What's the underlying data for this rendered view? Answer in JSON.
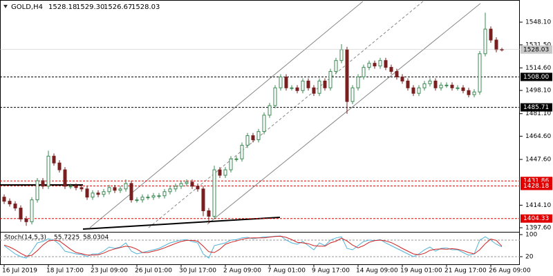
{
  "chart_data": {
    "type": "candlestick",
    "header": {
      "symbol": "GOLD,H4",
      "ohlc": [
        1528.18,
        {
          "value": 1529.3,
          "label": "1529.30"
        },
        1526.67,
        1528.03
      ]
    },
    "categories": [
      "16 Jul 2019",
      null,
      null,
      null,
      null,
      null,
      null,
      null,
      "18 Jul 17:00",
      null,
      null,
      null,
      null,
      null,
      null,
      null,
      "23 Jul 09:00",
      null,
      null,
      null,
      null,
      null,
      null,
      null,
      "26 Jul 01:00",
      null,
      null,
      null,
      null,
      null,
      null,
      null,
      "30 Jul 17:00",
      null,
      null,
      null,
      null,
      null,
      null,
      null,
      "2 Aug 09:00",
      null,
      null,
      null,
      null,
      null,
      null,
      null,
      "7 Aug 01:00",
      null,
      null,
      null,
      null,
      null,
      null,
      null,
      "9 Aug 17:00",
      null,
      null,
      null,
      null,
      null,
      null,
      null,
      "14 Aug 09:00",
      null,
      null,
      null,
      null,
      null,
      null,
      null,
      "19 Aug 01:00",
      null,
      null,
      null,
      null,
      null,
      null,
      null,
      "21 Aug 17:00",
      null,
      null,
      null,
      null,
      null,
      null,
      null,
      "26 Aug 09:00",
      null,
      null
    ],
    "open": [
      1420,
      1417,
      1415,
      1412,
      1404,
      1402,
      1418,
      1432,
      1428,
      1450,
      1445,
      1440,
      1428,
      1428,
      1427,
      1426,
      1420,
      1423,
      1422,
      1424,
      1427,
      1425,
      1426,
      1430,
      1418,
      1418,
      1420,
      1420,
      1421,
      1421,
      1424,
      1426,
      1428,
      1430,
      1431,
      1428,
      1426,
      1410,
      1406,
      1440,
      1436,
      1440,
      1448,
      1448,
      1458,
      1465,
      1462,
      1468,
      1480,
      1487,
      1500,
      1508,
      1500,
      1500,
      1498,
      1505,
      1500,
      1496,
      1505,
      1500,
      1512,
      1520,
      1528,
      1490,
      1500,
      1508,
      1515,
      1518,
      1516,
      1520,
      1515,
      1512,
      1508,
      1505,
      1500,
      1496,
      1500,
      1503,
      1505,
      1500,
      1502,
      1502,
      1500,
      1500,
      1498,
      1495,
      1497,
      1525,
      1543,
      1535,
      1528.18
    ],
    "high": [
      1422,
      1419,
      1417,
      1414,
      1406,
      1420,
      1434,
      1434,
      1454,
      1452,
      1447,
      1442,
      1430,
      1430,
      1429,
      1428,
      1425,
      1425,
      1426,
      1429,
      1429,
      1428,
      1433,
      1432,
      1420,
      1422,
      1422,
      1423,
      1423,
      1426,
      1428,
      1430,
      1432,
      1433,
      1433,
      1430,
      1428,
      1412,
      1443,
      1442,
      1442,
      1450,
      1450,
      1460,
      1467,
      1467,
      1470,
      1482,
      1489,
      1502,
      1510,
      1510,
      1502,
      1502,
      1507,
      1507,
      1502,
      1507,
      1507,
      1514,
      1522,
      1532,
      1530,
      1502,
      1510,
      1517,
      1520,
      1520,
      1522,
      1522,
      1517,
      1514,
      1510,
      1507,
      1502,
      1502,
      1505,
      1507,
      1507,
      1504,
      1504,
      1504,
      1502,
      1502,
      1500,
      1499,
      1527,
      1555,
      1545,
      1537,
      1529.3
    ],
    "low": [
      1415,
      1413,
      1410,
      1402,
      1399,
      1400,
      1416,
      1426,
      1426,
      1443,
      1438,
      1426,
      1426,
      1425,
      1424,
      1418,
      1418,
      1420,
      1420,
      1422,
      1423,
      1423,
      1424,
      1416,
      1416,
      1416,
      1418,
      1418,
      1419,
      1419,
      1422,
      1424,
      1426,
      1428,
      1426,
      1424,
      1406,
      1401,
      1404,
      1434,
      1434,
      1438,
      1446,
      1446,
      1456,
      1460,
      1460,
      1466,
      1478,
      1485,
      1498,
      1498,
      1498,
      1496,
      1496,
      1498,
      1494,
      1494,
      1498,
      1498,
      1510,
      1518,
      1481,
      1488,
      1498,
      1506,
      1513,
      1514,
      1514,
      1513,
      1510,
      1506,
      1503,
      1498,
      1494,
      1494,
      1498,
      1501,
      1498,
      1498,
      1500,
      1498,
      1498,
      1496,
      1493,
      1493,
      1495,
      1523,
      1533,
      1526,
      1526.67
    ],
    "close": [
      1417,
      1415,
      1412,
      1404,
      1402,
      1418,
      1432,
      1428,
      1450,
      1445,
      1440,
      1428,
      1428,
      1427,
      1426,
      1420,
      1423,
      1422,
      1424,
      1427,
      1425,
      1426,
      1430,
      1418,
      1418,
      1420,
      1420,
      1421,
      1421,
      1424,
      1426,
      1428,
      1430,
      1431,
      1428,
      1426,
      1410,
      1406,
      1440,
      1436,
      1440,
      1448,
      1448,
      1458,
      1465,
      1462,
      1468,
      1480,
      1487,
      1500,
      1508,
      1500,
      1500,
      1498,
      1505,
      1500,
      1496,
      1505,
      1500,
      1512,
      1520,
      1528,
      1490,
      1500,
      1508,
      1515,
      1518,
      1516,
      1520,
      1515,
      1512,
      1508,
      1505,
      1500,
      1496,
      1500,
      1503,
      1505,
      1500,
      1502,
      1502,
      1500,
      1500,
      1498,
      1495,
      1497,
      1525,
      1543,
      1535,
      1528,
      1528.03
    ],
    "up_color": "#3a8a50",
    "down_color": "#7a1f1f",
    "ylim": [
      1395.6,
      1564.3
    ],
    "yticks": [
      {
        "value": 1548.1,
        "label": "1548.10"
      },
      {
        "value": 1531.5,
        "label": "1531.50"
      },
      {
        "value": 1514.6,
        "label": "1514.60"
      },
      {
        "value": 1498.1,
        "label": "1498.10"
      },
      {
        "value": 1481.1,
        "label": "1481.10"
      },
      {
        "value": 1464.6,
        "label": "1464.60"
      },
      {
        "value": 1447.6,
        "label": "1447.60"
      },
      {
        "value": 1414.1,
        "label": "1414.10"
      },
      {
        "value": 1397.6,
        "label": "1397.60"
      }
    ],
    "levels": [
      {
        "value": 1508,
        "label": "1508.00",
        "color": "#000000"
      },
      {
        "value": 1485.71,
        "label": "1485.71",
        "color": "#000000"
      },
      {
        "value": 1431.86,
        "label": "1431.86",
        "color": "#e00000"
      },
      {
        "value": 1428.18,
        "label": "1428.18",
        "color": "#e00000"
      },
      {
        "value": 1404.33,
        "label": "1404.33",
        "color": "#e00000"
      }
    ],
    "grid": false,
    "stoch": {
      "name": "Stoch(14,5,3)",
      "ylim": [
        0,
        100
      ],
      "yticks": [
        100,
        20
      ],
      "levels": [
        80,
        20
      ],
      "series": [
        {
          "name": "main",
          "color": "#4fb3d9",
          "values": [
            60,
            45,
            30,
            20,
            15,
            40,
            70,
            75,
            85,
            80,
            65,
            40,
            35,
            30,
            28,
            20,
            30,
            30,
            40,
            55,
            50,
            55,
            70,
            40,
            30,
            35,
            40,
            45,
            50,
            60,
            70,
            75,
            80,
            82,
            75,
            70,
            30,
            15,
            60,
            65,
            70,
            80,
            82,
            88,
            90,
            85,
            88,
            92,
            92,
            94,
            95,
            80,
            70,
            65,
            75,
            60,
            45,
            70,
            60,
            80,
            88,
            92,
            50,
            45,
            60,
            75,
            80,
            78,
            82,
            70,
            60,
            50,
            40,
            30,
            20,
            30,
            45,
            55,
            40,
            50,
            52,
            45,
            45,
            35,
            25,
            30,
            80,
            92,
            80,
            65,
            55.7225
          ]
        },
        {
          "name": "signal",
          "color": "#d02020",
          "values": [
            62,
            55,
            45,
            32,
            22,
            25,
            42,
            62,
            77,
            80,
            77,
            62,
            47,
            35,
            31,
            26,
            26,
            27,
            33,
            42,
            48,
            53,
            58,
            55,
            47,
            35,
            35,
            40,
            45,
            52,
            60,
            68,
            75,
            79,
            79,
            76,
            58,
            38,
            35,
            47,
            65,
            72,
            77,
            83,
            87,
            88,
            88,
            88,
            91,
            93,
            94,
            90,
            82,
            72,
            70,
            67,
            60,
            58,
            58,
            70,
            76,
            87,
            77,
            62,
            52,
            60,
            72,
            78,
            80,
            77,
            71,
            61,
            50,
            40,
            30,
            27,
            32,
            43,
            47,
            48,
            47,
            49,
            47,
            42,
            35,
            30,
            45,
            67,
            84,
            79,
            58.0304
          ]
        }
      ]
    }
  }
}
